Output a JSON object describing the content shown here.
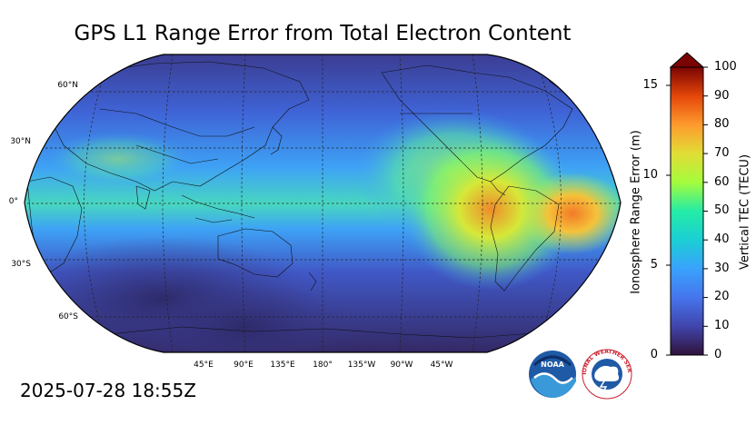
{
  "title": "GPS L1 Range Error from Total Electron Content",
  "timestamp": "2025-07-28 18:55Z",
  "map": {
    "projection": "Robinson",
    "central_longitude": 180,
    "lat_labels": [
      "60°N",
      "30°N",
      "0°",
      "30°S",
      "60°S"
    ],
    "lon_labels": [
      "45°E",
      "90°E",
      "135°E",
      "180°",
      "135°W",
      "90°W",
      "45°W"
    ],
    "gridlines": "dashed"
  },
  "colorbar": {
    "right_label": "Vertical TEC (TECU)",
    "left_label": "Ionosphere Range Error (m)",
    "right_ticks": [
      "0",
      "10",
      "20",
      "30",
      "40",
      "50",
      "60",
      "70",
      "80",
      "90",
      "100"
    ],
    "left_ticks": [
      "0",
      "5",
      "10",
      "15"
    ],
    "colormap": "turbo",
    "extend": "max"
  },
  "logos": [
    {
      "name": "NOAA",
      "text": "NOAA"
    },
    {
      "name": "National Weather Service",
      "text": "NATIONAL WEATHER SERVICE"
    }
  ]
}
